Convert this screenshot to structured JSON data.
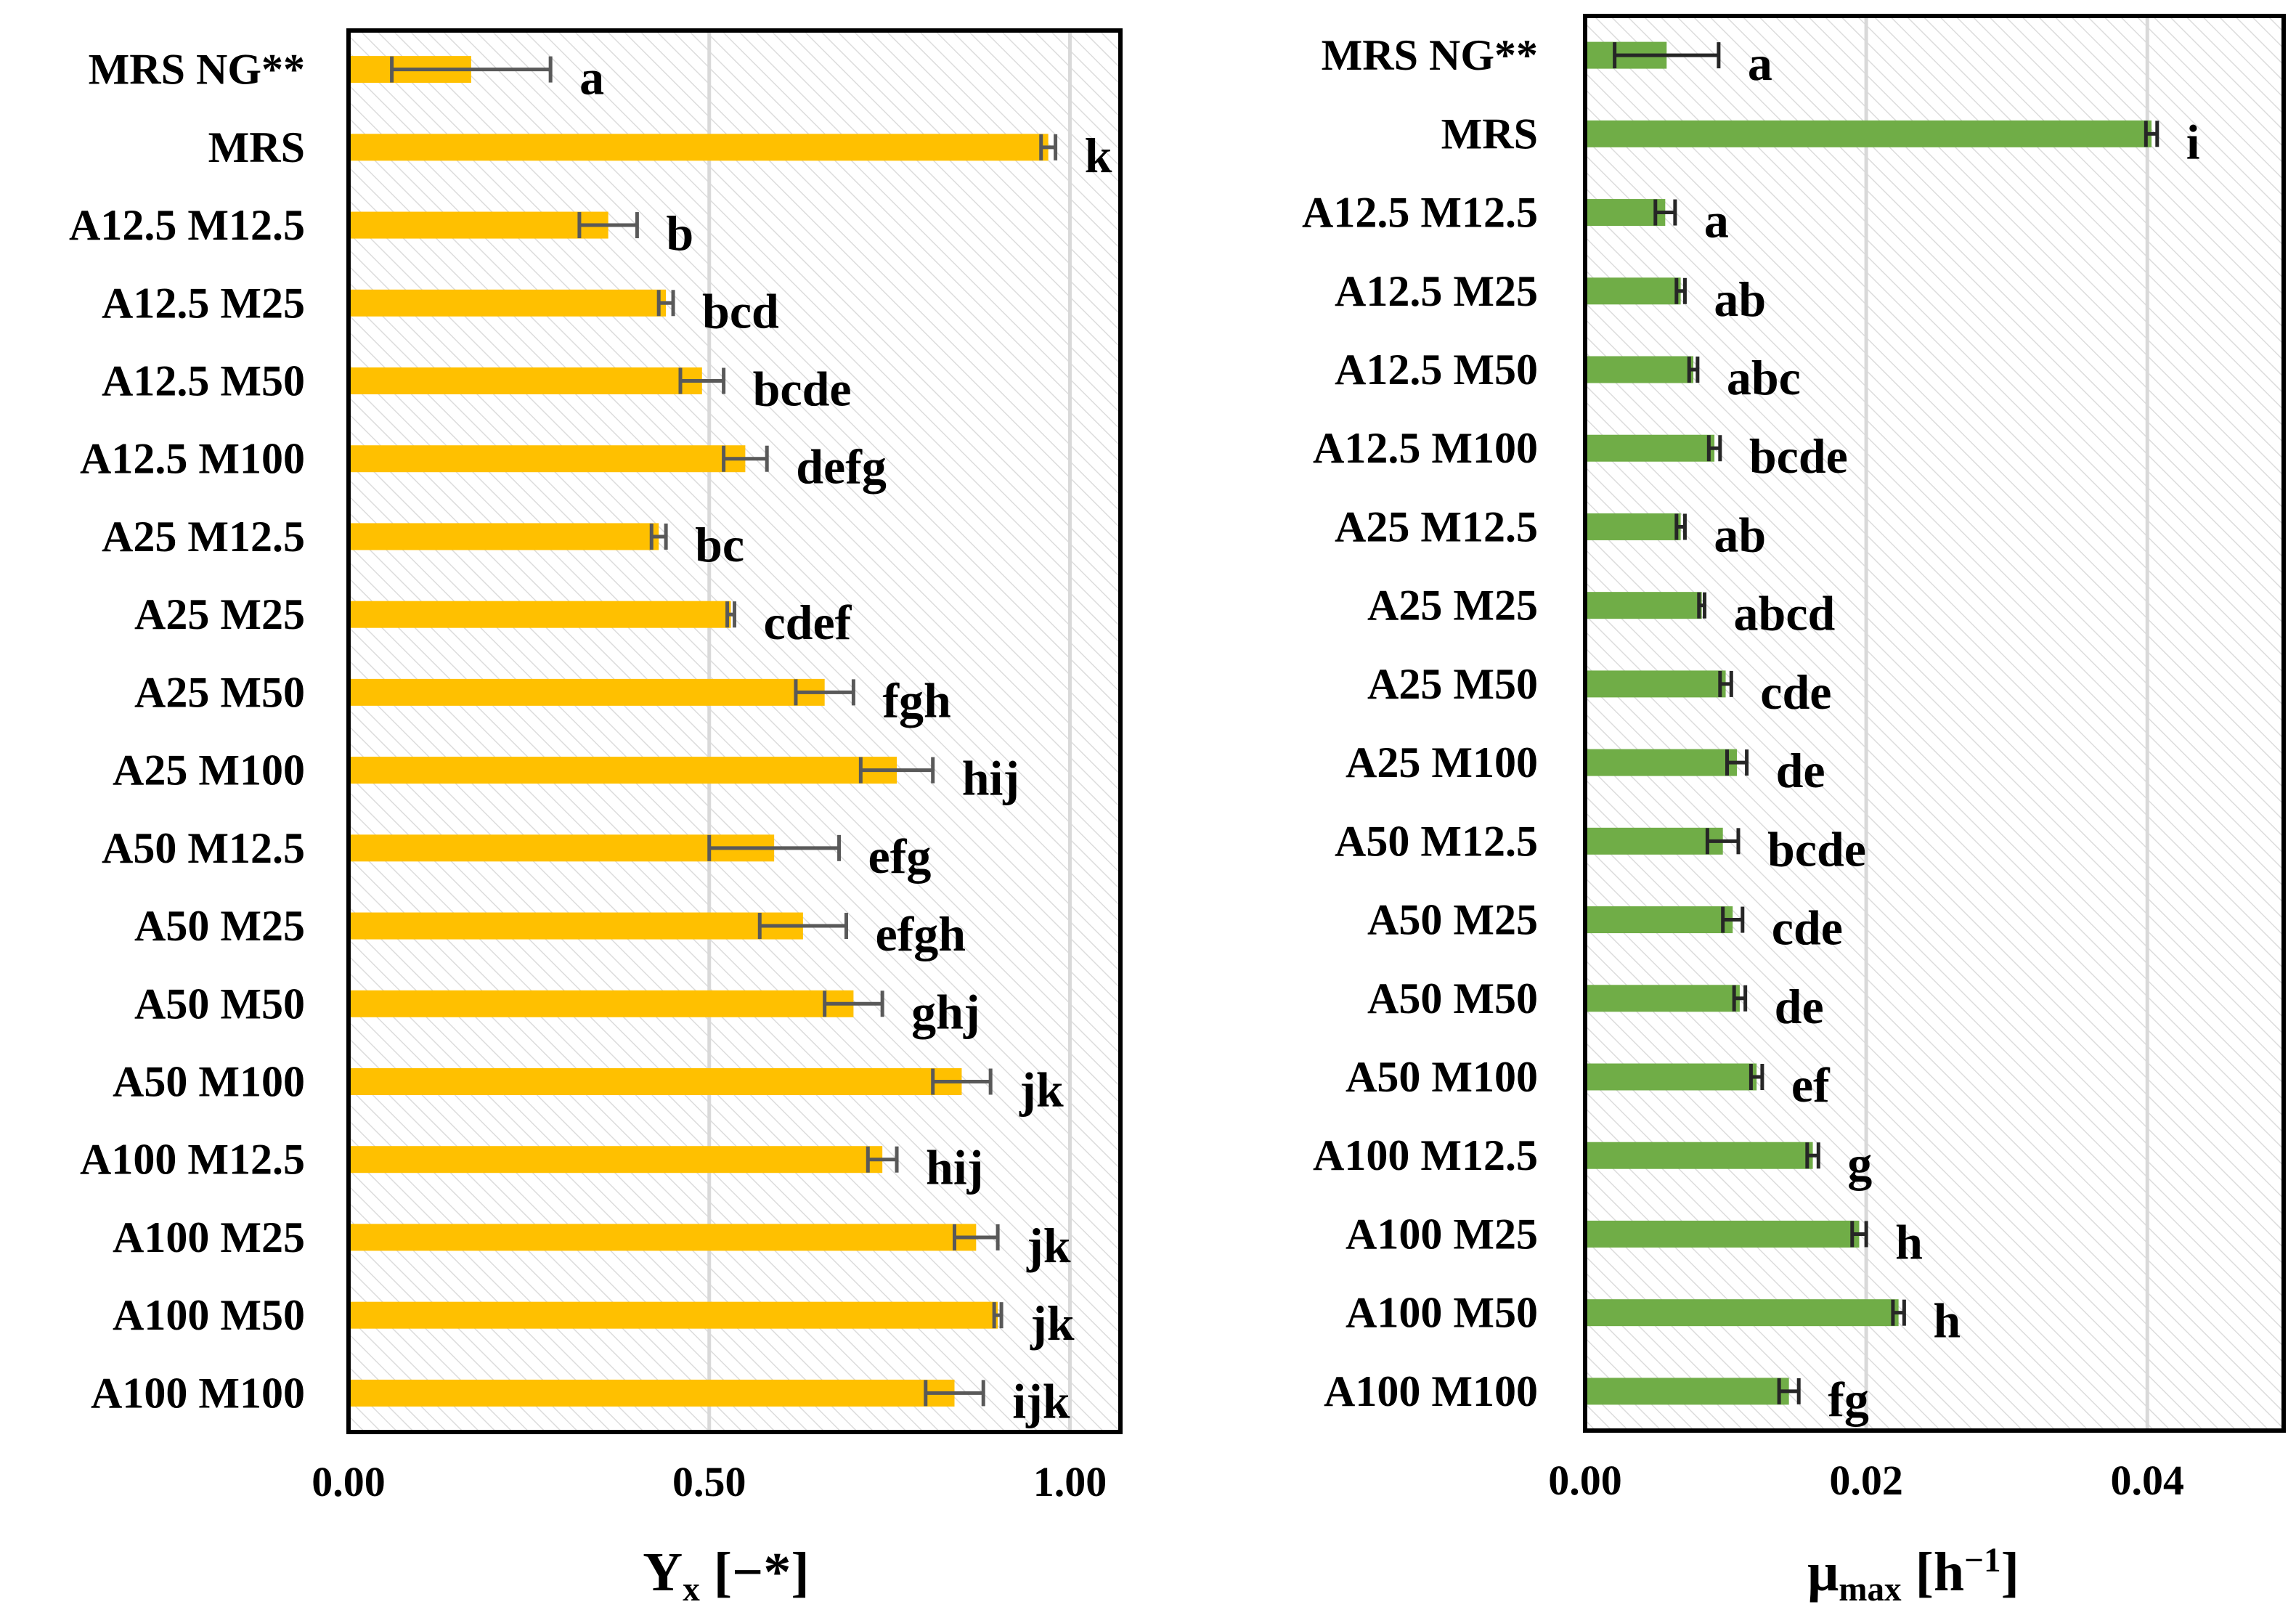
{
  "chart_data": [
    {
      "type": "bar",
      "orientation": "horizontal",
      "color": "#FFC000",
      "error_bar_color": "#595959",
      "categories": [
        "MRS NG**",
        "MRS",
        "A12.5 M12.5",
        "A12.5 M25",
        "A12.5 M50",
        "A12.5 M100",
        "A25 M12.5",
        "A25 M25",
        "A25 M50",
        "A25 M100",
        "A50 M12.5",
        "A50 M25",
        "A50 M50",
        "A50 M100",
        "A100 M12.5",
        "A100 M25",
        "A100 M50",
        "A100 M100"
      ],
      "values": [
        0.17,
        0.97,
        0.36,
        0.44,
        0.49,
        0.55,
        0.43,
        0.53,
        0.66,
        0.76,
        0.59,
        0.63,
        0.7,
        0.85,
        0.74,
        0.87,
        0.9,
        0.84
      ],
      "errors": [
        0.11,
        0.01,
        0.04,
        0.01,
        0.03,
        0.03,
        0.01,
        0.005,
        0.04,
        0.05,
        0.09,
        0.06,
        0.04,
        0.04,
        0.02,
        0.03,
        0.005,
        0.04
      ],
      "letters": [
        "a",
        "k",
        "b",
        "bcd",
        "bcde",
        "defg",
        "bc",
        "cdef",
        "fgh",
        "hij",
        "efg",
        "efgh",
        "ghj",
        "jk",
        "hij",
        "jk",
        "jk",
        "ijk"
      ],
      "xlim": [
        0,
        1.07
      ],
      "xticks": [
        "0.00",
        "0.50",
        "1.00"
      ],
      "xtick_values": [
        0,
        0.5,
        1.0
      ],
      "xlabel_main": "Y",
      "xlabel_sub": "x",
      "xlabel_unit": " [−*]",
      "grid": true,
      "legend": "none"
    },
    {
      "type": "bar",
      "orientation": "horizontal",
      "color": "#70AD47",
      "error_bar_color": "#262626",
      "categories": [
        "MRS NG**",
        "MRS",
        "A12.5 M12.5",
        "A12.5 M25",
        "A12.5 M50",
        "A12.5 M100",
        "A25 M12.5",
        "A25 M25",
        "A25 M50",
        "A25 M100",
        "A50 M12.5",
        "A50 M25",
        "A50 M50",
        "A50 M100",
        "A100 M12.5",
        "A100 M25",
        "A100 M50",
        "A100 M100"
      ],
      "values": [
        0.0058,
        0.0403,
        0.0057,
        0.0068,
        0.0077,
        0.0092,
        0.0068,
        0.0083,
        0.01,
        0.0108,
        0.0098,
        0.0105,
        0.011,
        0.0122,
        0.0162,
        0.0195,
        0.0223,
        0.0145
      ],
      "errors": [
        0.0037,
        0.0004,
        0.0007,
        0.0003,
        0.0003,
        0.0004,
        0.0003,
        0.0002,
        0.0004,
        0.0007,
        0.0011,
        0.0007,
        0.0004,
        0.0004,
        0.0004,
        0.0005,
        0.0004,
        0.0007
      ],
      "letters": [
        "a",
        "i",
        "a",
        "ab",
        "abc",
        "bcde",
        "ab",
        "abcd",
        "cde",
        "de",
        "bcde",
        "cde",
        "de",
        "ef",
        "g",
        "h",
        "h",
        "fg"
      ],
      "xlim": [
        0,
        0.0497
      ],
      "xticks": [
        "0.00",
        "0.02",
        "0.04"
      ],
      "xtick_values": [
        0,
        0.02,
        0.04
      ],
      "xlabel_main": "μ",
      "xlabel_sub": "max",
      "xlabel_unit": " [h",
      "xlabel_sup": "−1",
      "xlabel_close": "]",
      "grid": true,
      "legend": "none"
    }
  ]
}
